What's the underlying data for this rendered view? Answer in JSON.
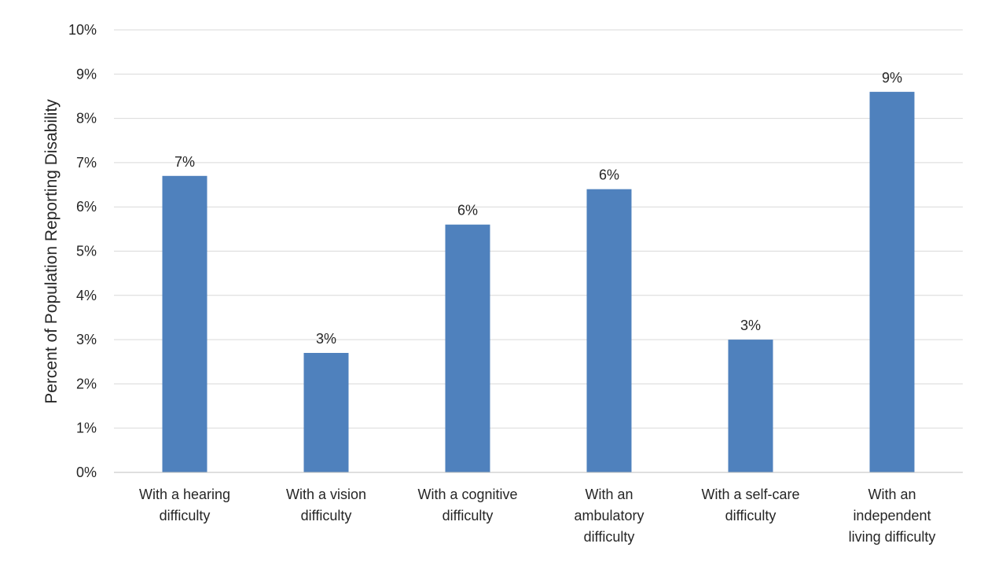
{
  "chart_data": {
    "type": "bar",
    "categories": [
      [
        "With a hearing",
        "difficulty"
      ],
      [
        "With a vision",
        "difficulty"
      ],
      [
        "With a cognitive",
        "difficulty"
      ],
      [
        "With an",
        "ambulatory",
        "difficulty"
      ],
      [
        "With a self-care",
        "difficulty"
      ],
      [
        "With an",
        "independent",
        "living difficulty"
      ]
    ],
    "values": [
      6.7,
      2.7,
      5.6,
      6.4,
      3.0,
      8.6
    ],
    "data_labels": [
      "7%",
      "3%",
      "6%",
      "6%",
      "3%",
      "9%"
    ],
    "ylabel": "Percent of Population Reporting Disability",
    "ylim": [
      0,
      10
    ],
    "y_ticks": [
      0,
      1,
      2,
      3,
      4,
      5,
      6,
      7,
      8,
      9,
      10
    ],
    "y_tick_labels": [
      "0%",
      "1%",
      "2%",
      "3%",
      "4%",
      "5%",
      "6%",
      "7%",
      "8%",
      "9%",
      "10%"
    ],
    "grid": true,
    "legend": "none",
    "colors": {
      "bar": "#4f81bd",
      "grid": "#d9d9d9",
      "axis": "#bfbfbf",
      "text": "#262626"
    }
  }
}
